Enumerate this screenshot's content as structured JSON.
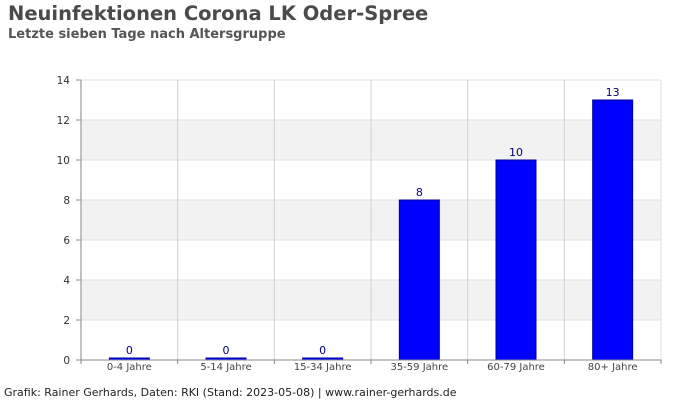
{
  "title": "Neuinfektionen Corona LK Oder-Spree",
  "subtitle": "Letzte sieben Tage nach Altersgruppe",
  "footer": "Grafik: Rainer Gerhards, Daten: RKI (Stand: 2023-05-08) | www.rainer-gerhards.de",
  "colors": {
    "bar": "#0000ff",
    "bar_edge": "#00009e",
    "band": "#f2f2f2",
    "grid": "#d0d0d0"
  },
  "chart_data": {
    "type": "bar",
    "categories": [
      "0-4 Jahre",
      "5-14 Jahre",
      "15-34 Jahre",
      "35-59 Jahre",
      "60-79 Jahre",
      "80+ Jahre"
    ],
    "values": [
      0,
      0,
      0,
      8,
      10,
      13
    ],
    "data_labels": [
      "0",
      "0",
      "0",
      "8",
      "10",
      "13"
    ],
    "ylim": [
      0,
      14
    ],
    "yticks": [
      0,
      2,
      4,
      6,
      8,
      10,
      12,
      14
    ],
    "grid": true,
    "legend": "none"
  }
}
